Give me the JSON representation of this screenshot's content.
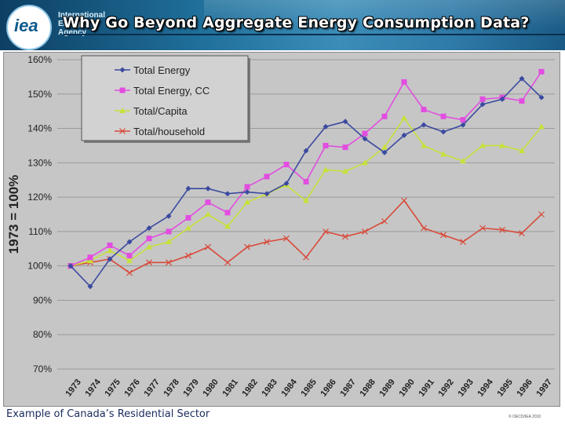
{
  "header": {
    "logo_text": "iea",
    "org_name": "International Energy Agency",
    "title": "Why Go Beyond Aggregate Energy Consumption Data?"
  },
  "footer": {
    "caption": "Example of Canada’s Residential Sector",
    "copyright": "© OECD/IEA 2010"
  },
  "colors": {
    "total_energy": "#3b4aa0",
    "total_energy_cc": "#e24de0",
    "total_capita": "#c8e03a",
    "total_household": "#d84a3a",
    "plot_bg": "#c6c6c6",
    "gridline": "#9a9a9a"
  },
  "chart_data": {
    "type": "line",
    "title": "",
    "xlabel": "",
    "ylabel": "1973 = 100%",
    "ylim": [
      70,
      160
    ],
    "ytick_labels": [
      "70%",
      "80%",
      "90%",
      "100%",
      "110%",
      "120%",
      "130%",
      "140%",
      "150%",
      "160%"
    ],
    "yticks": [
      70,
      80,
      90,
      100,
      110,
      120,
      130,
      140,
      150,
      160
    ],
    "grid": true,
    "legend_position": "top-left",
    "categories": [
      "1973",
      "1974",
      "1975",
      "1976",
      "1977",
      "1978",
      "1979",
      "1980",
      "1981",
      "1982",
      "1983",
      "1984",
      "1985",
      "1986",
      "1987",
      "1988",
      "1989",
      "1990",
      "1991",
      "1992",
      "1993",
      "1994",
      "1995",
      "1996",
      "1997"
    ],
    "series": [
      {
        "name": "Total Energy",
        "marker": "diamond",
        "color_key": "total_energy",
        "values": [
          100,
          94,
          102,
          107,
          111,
          114.5,
          122.5,
          122.5,
          121,
          121.5,
          121,
          124,
          133.5,
          140.5,
          142,
          137,
          133,
          138,
          141,
          139,
          141,
          147,
          148.5,
          154.5,
          149
        ]
      },
      {
        "name": "Total Energy, CC",
        "marker": "square",
        "color_key": "total_energy_cc",
        "values": [
          100,
          102.5,
          106,
          103,
          108,
          110,
          114,
          118.5,
          115.5,
          123,
          126,
          129.5,
          124.5,
          135,
          134.5,
          138.5,
          143.5,
          153.5,
          145.5,
          143.5,
          142.5,
          148.5,
          149,
          148,
          156.5
        ]
      },
      {
        "name": "Total/Capita",
        "marker": "triangle",
        "color_key": "total_capita",
        "values": [
          100,
          101.5,
          104.5,
          101.5,
          105.5,
          107,
          111,
          115,
          111.5,
          118.5,
          121,
          123.5,
          119,
          128,
          127.5,
          130,
          134.5,
          143,
          135,
          132.5,
          130.5,
          135,
          135,
          133.5,
          140.5
        ]
      },
      {
        "name": "Total/household",
        "marker": "x",
        "color_key": "total_household",
        "values": [
          100,
          101,
          102,
          98,
          101,
          101,
          103,
          105.5,
          101,
          105.5,
          107,
          108,
          102.5,
          110,
          108.5,
          110,
          113,
          119,
          111,
          109,
          107,
          111,
          110.5,
          109.5,
          115
        ]
      }
    ]
  }
}
